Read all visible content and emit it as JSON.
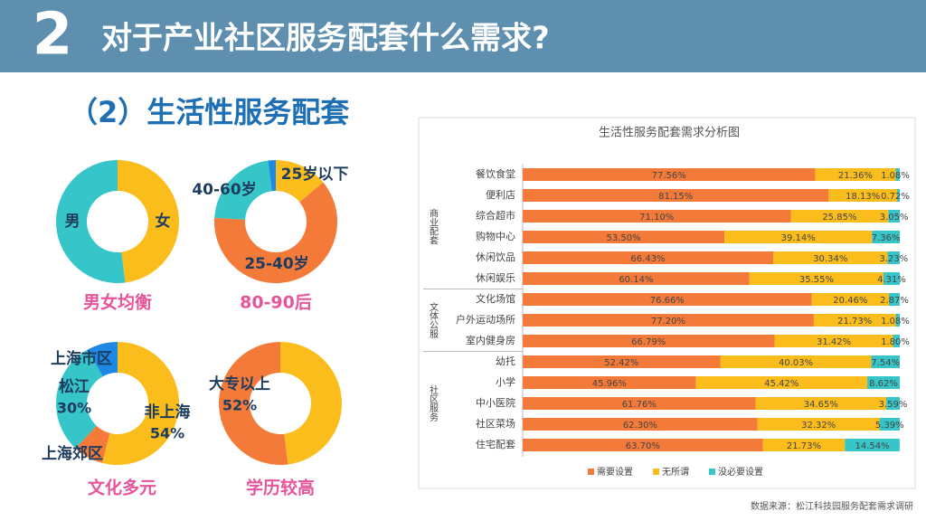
{
  "header": {
    "number": "2",
    "title": "对于产业社区服务配套什么需求?"
  },
  "subtitle": "（2）生活性服务配套",
  "source": "数据来源：松江科技园服务配套需求调研",
  "chart_data": [
    {
      "type": "donut",
      "categories": [
        "女",
        "男"
      ],
      "values": [
        48,
        52
      ],
      "colors": [
        "#fbbd1c",
        "#36c5c8"
      ],
      "caption": "男女均衡"
    },
    {
      "type": "donut",
      "categories": [
        "25岁以下",
        "25-40岁",
        "40-60岁",
        null
      ],
      "values": [
        14,
        62,
        22,
        2
      ],
      "colors": [
        "#fbbd1c",
        "#f47a3a",
        "#36c5c8",
        "#1e88e5"
      ],
      "caption": "80-90后"
    },
    {
      "type": "donut",
      "categories": [
        "非上海",
        "上海郊区",
        "松江",
        "上海市区"
      ],
      "values": [
        54,
        8,
        30,
        8
      ],
      "value_labels": [
        "54%",
        null,
        "30%",
        null
      ],
      "colors": [
        "#fbbd1c",
        "#f47a3a",
        "#36c5c8",
        "#1e88e5"
      ],
      "caption": "文化多元"
    },
    {
      "type": "donut",
      "categories": [
        null,
        "大专以上"
      ],
      "values": [
        48,
        52
      ],
      "value_labels": [
        null,
        "52%"
      ],
      "colors": [
        "#fbbd1c",
        "#f47a3a"
      ],
      "caption": "学历较高"
    },
    {
      "type": "bar",
      "orientation": "horizontal",
      "stacked": true,
      "title": "生活性服务配套需求分析图",
      "groups": [
        {
          "name": "商业配套",
          "categories": [
            "餐饮食堂",
            "便利店",
            "综合超市",
            "购物中心",
            "休闲饮品",
            "休闲娱乐"
          ]
        },
        {
          "name": "文体公服",
          "categories": [
            "文化场馆",
            "户外运动场所",
            "室内健身房"
          ]
        },
        {
          "name": "社区服务",
          "categories": [
            "幼托",
            "小学",
            "中小医院",
            "社区菜场",
            "住宅配套"
          ]
        }
      ],
      "xlim": [
        0,
        100
      ],
      "legend": "bottom",
      "series": [
        {
          "name": "需要设置",
          "color": "#f47a3a",
          "values": [
            77.56,
            81.15,
            71.1,
            53.5,
            66.43,
            60.14,
            76.66,
            77.2,
            66.79,
            52.42,
            45.96,
            61.76,
            62.3,
            63.7
          ],
          "value_labels": [
            "77.56%",
            "81.15%",
            "71.10%",
            "53.50%",
            "66.43%",
            "60.14%",
            "76.66%",
            "77.20%",
            "66.79%",
            "52.42%",
            "45.96%",
            "61.76%",
            "62.30%",
            "63.70%"
          ]
        },
        {
          "name": "无所谓",
          "color": "#fbbd1c",
          "values": [
            21.36,
            18.13,
            25.85,
            39.14,
            30.34,
            35.55,
            20.46,
            21.73,
            31.42,
            40.03,
            45.42,
            34.65,
            32.32,
            21.73
          ],
          "value_labels": [
            "21.36%",
            "18.13%",
            "25.85%",
            "39.14%",
            "30.34%",
            "35.55%",
            "20.46%",
            "21.73%",
            "31.42%",
            "40.03%",
            "45.42%",
            "34.65%",
            "32.32%",
            "21.73%"
          ]
        },
        {
          "name": "没必要设置",
          "color": "#36c5c8",
          "values": [
            1.08,
            0.72,
            3.05,
            7.36,
            3.23,
            4.31,
            2.87,
            1.08,
            1.8,
            7.54,
            8.62,
            3.59,
            5.39,
            14.54
          ],
          "value_labels": [
            "1.08%",
            "0.72%",
            "3.05%",
            "7.36%",
            "3.23%",
            "4.31%",
            "2.87%",
            "1.08%",
            "1.80%",
            "7.54%",
            "8.62%",
            "3.59%",
            "5.39%",
            "14.54%"
          ]
        }
      ]
    }
  ]
}
